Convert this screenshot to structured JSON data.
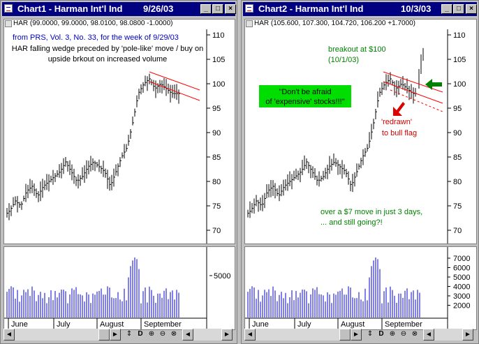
{
  "windows": [
    {
      "title": "Chart1 - Harman Int'l Ind",
      "date": "9/26/03",
      "price_bar": "HAR (99.0000, 99.0000, 98.0100, 98.0800 -1.0000)",
      "annotations": {
        "source": "from PRS, Vol. 3, No. 33, for the week of 9/29/03",
        "note": "HAR  falling wedge preceded by 'pole-like' move / buy on upside brkout on increased volume"
      },
      "months": [
        "June",
        "July",
        "August",
        "September"
      ],
      "price_axis": [
        "110",
        "105",
        "100",
        "95",
        "90",
        "85",
        "80",
        "75",
        "70"
      ],
      "volume_axis": [
        "5000"
      ]
    },
    {
      "title": "Chart2 - Harman Int'l Ind",
      "date": "10/3/03",
      "price_bar": "HAR (105.600, 107.300, 104.720, 106.200 +1.7000)",
      "annotations": {
        "breakout": "breakout at $100",
        "breakout_date": "(10/1/03)",
        "dont_line1": "\"Don't be afraid",
        "dont_line2": "of 'expensive' stocks!!!\"",
        "redrawn_line1": "'redrawn'",
        "redrawn_line2": "to bull flag",
        "move_line1": "over a $7 move in just 3 days,",
        "move_line2": "... and still going?!"
      },
      "months": [
        "June",
        "July",
        "August",
        "September"
      ],
      "price_axis": [
        "110",
        "105",
        "100",
        "95",
        "90",
        "85",
        "80",
        "75",
        "70"
      ],
      "volume_axis": [
        "7000",
        "6000",
        "5000",
        "4000",
        "3000",
        "2000"
      ]
    }
  ],
  "scroll_controls": {
    "left_arrow": "◄",
    "right_arrow": "►",
    "zoom_label": "D"
  },
  "window_buttons": {
    "minimize": "_",
    "maximize": "□",
    "close": "×"
  },
  "colors": {
    "titlebar": "#000080",
    "candles": "#000000",
    "volume": "#0000cc",
    "wedge": "#ff0000",
    "annotation_blue": "#0000cc",
    "annotation_green": "#008000",
    "annotation_red": "#cc0000",
    "highlight_box": "#00dd00"
  }
}
